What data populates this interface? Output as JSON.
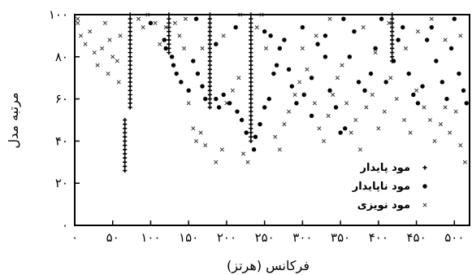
{
  "chart_data": {
    "type": "scatter",
    "xlabel": "فرکانس (هرتز)",
    "ylabel": "مرتبه مدل",
    "xlim": [
      0,
      520
    ],
    "ylim": [
      0,
      100
    ],
    "x_ticks": [
      0,
      50,
      100,
      150,
      200,
      250,
      300,
      350,
      400,
      450,
      500
    ],
    "x_tick_labels": [
      "۰",
      "۵۰",
      "۱۰۰",
      "۱۵۰",
      "۲۰۰",
      "۲۵۰",
      "۳۰۰",
      "۳۵۰",
      "۴۰۰",
      "۴۵۰",
      "۵۰۰"
    ],
    "y_ticks": [
      0,
      20,
      40,
      60,
      80,
      100
    ],
    "y_tick_labels": [
      "۰",
      "۲۰",
      "۴۰",
      "۶۰",
      "۸۰",
      "۱۰۰"
    ],
    "legend_position": "bottom-right",
    "series": [
      {
        "name": "مود پایدار",
        "marker": "plus",
        "color": "#000000",
        "points": [
          [
            66,
            26
          ],
          [
            66,
            28
          ],
          [
            66,
            30
          ],
          [
            66,
            32
          ],
          [
            66,
            34
          ],
          [
            66,
            36
          ],
          [
            66,
            38
          ],
          [
            66,
            40
          ],
          [
            66,
            42
          ],
          [
            66,
            44
          ],
          [
            66,
            46
          ],
          [
            66,
            48
          ],
          [
            66,
            50
          ],
          [
            73,
            56
          ],
          [
            73,
            58
          ],
          [
            73,
            60
          ],
          [
            73,
            62
          ],
          [
            73,
            64
          ],
          [
            73,
            66
          ],
          [
            73,
            68
          ],
          [
            73,
            70
          ],
          [
            73,
            72
          ],
          [
            73,
            74
          ],
          [
            73,
            76
          ],
          [
            73,
            78
          ],
          [
            73,
            80
          ],
          [
            73,
            82
          ],
          [
            73,
            84
          ],
          [
            73,
            86
          ],
          [
            73,
            88
          ],
          [
            73,
            90
          ],
          [
            73,
            92
          ],
          [
            73,
            94
          ],
          [
            73,
            96
          ],
          [
            73,
            98
          ],
          [
            73,
            100
          ],
          [
            124,
            82
          ],
          [
            124,
            84
          ],
          [
            124,
            86
          ],
          [
            124,
            88
          ],
          [
            124,
            90
          ],
          [
            124,
            92
          ],
          [
            124,
            94
          ],
          [
            124,
            96
          ],
          [
            124,
            98
          ],
          [
            124,
            100
          ],
          [
            178,
            56
          ],
          [
            178,
            58
          ],
          [
            178,
            60
          ],
          [
            178,
            62
          ],
          [
            178,
            64
          ],
          [
            178,
            66
          ],
          [
            178,
            68
          ],
          [
            178,
            70
          ],
          [
            178,
            72
          ],
          [
            178,
            74
          ],
          [
            178,
            76
          ],
          [
            178,
            78
          ],
          [
            178,
            80
          ],
          [
            178,
            82
          ],
          [
            178,
            84
          ],
          [
            178,
            86
          ],
          [
            178,
            88
          ],
          [
            178,
            90
          ],
          [
            178,
            92
          ],
          [
            178,
            94
          ],
          [
            178,
            96
          ],
          [
            178,
            98
          ],
          [
            178,
            100
          ],
          [
            232,
            40
          ],
          [
            232,
            42
          ],
          [
            232,
            44
          ],
          [
            232,
            46
          ],
          [
            232,
            48
          ],
          [
            232,
            50
          ],
          [
            232,
            52
          ],
          [
            232,
            54
          ],
          [
            232,
            56
          ],
          [
            232,
            58
          ],
          [
            232,
            60
          ],
          [
            232,
            62
          ],
          [
            232,
            64
          ],
          [
            232,
            66
          ],
          [
            232,
            68
          ],
          [
            232,
            70
          ],
          [
            232,
            72
          ],
          [
            232,
            74
          ],
          [
            232,
            76
          ],
          [
            232,
            78
          ],
          [
            232,
            80
          ],
          [
            232,
            82
          ],
          [
            232,
            84
          ],
          [
            232,
            86
          ],
          [
            232,
            88
          ],
          [
            232,
            90
          ],
          [
            232,
            92
          ],
          [
            232,
            94
          ],
          [
            232,
            96
          ],
          [
            232,
            98
          ],
          [
            232,
            100
          ],
          [
            418,
            78
          ],
          [
            418,
            80
          ],
          [
            418,
            82
          ],
          [
            418,
            84
          ],
          [
            418,
            86
          ],
          [
            418,
            88
          ],
          [
            418,
            90
          ],
          [
            418,
            92
          ],
          [
            418,
            94
          ],
          [
            418,
            96
          ],
          [
            418,
            98
          ],
          [
            418,
            100
          ]
        ]
      },
      {
        "name": "مود ناپایدار",
        "marker": "dot",
        "color": "#000000",
        "points": [
          [
            118,
            88
          ],
          [
            120,
            84
          ],
          [
            128,
            80
          ],
          [
            130,
            76
          ],
          [
            134,
            72
          ],
          [
            140,
            68
          ],
          [
            150,
            64
          ],
          [
            156,
            78
          ],
          [
            162,
            72
          ],
          [
            168,
            66
          ],
          [
            172,
            60
          ],
          [
            186,
            60
          ],
          [
            190,
            56
          ],
          [
            196,
            62
          ],
          [
            204,
            58
          ],
          [
            214,
            54
          ],
          [
            220,
            50
          ],
          [
            226,
            44
          ],
          [
            236,
            36
          ],
          [
            238,
            42
          ],
          [
            244,
            48
          ],
          [
            250,
            56
          ],
          [
            256,
            60
          ],
          [
            262,
            72
          ],
          [
            266,
            76
          ],
          [
            270,
            84
          ],
          [
            276,
            88
          ],
          [
            282,
            74
          ],
          [
            286,
            66
          ],
          [
            292,
            58
          ],
          [
            302,
            62
          ],
          [
            312,
            70
          ],
          [
            320,
            86
          ],
          [
            330,
            90
          ],
          [
            336,
            64
          ],
          [
            344,
            56
          ],
          [
            350,
            44
          ],
          [
            356,
            46
          ],
          [
            362,
            80
          ],
          [
            368,
            92
          ],
          [
            374,
            68
          ],
          [
            382,
            64
          ],
          [
            390,
            72
          ],
          [
            396,
            84
          ],
          [
            404,
            98
          ],
          [
            410,
            68
          ],
          [
            420,
            78
          ],
          [
            426,
            88
          ],
          [
            432,
            94
          ],
          [
            440,
            72
          ],
          [
            446,
            62
          ],
          [
            452,
            58
          ],
          [
            458,
            66
          ],
          [
            464,
            88
          ],
          [
            470,
            94
          ],
          [
            476,
            78
          ],
          [
            484,
            68
          ],
          [
            490,
            60
          ],
          [
            496,
            84
          ],
          [
            500,
            98
          ],
          [
            506,
            72
          ],
          [
            512,
            64
          ],
          [
            516,
            58
          ],
          [
            354,
            98
          ],
          [
            300,
            94
          ],
          [
            258,
            90
          ],
          [
            212,
            94
          ],
          [
            186,
            86
          ],
          [
            160,
            98
          ],
          [
            100,
            96
          ],
          [
            250,
            92
          ],
          [
            312,
            52
          ],
          [
            330,
            80
          ]
        ]
      },
      {
        "name": "مود نویزی",
        "marker": "x",
        "color": "#333333",
        "points": [
          [
            4,
            96
          ],
          [
            8,
            90
          ],
          [
            14,
            86
          ],
          [
            20,
            92
          ],
          [
            26,
            82
          ],
          [
            30,
            76
          ],
          [
            36,
            84
          ],
          [
            40,
            96
          ],
          [
            46,
            88
          ],
          [
            50,
            80
          ],
          [
            56,
            78
          ],
          [
            60,
            90
          ],
          [
            84,
            98
          ],
          [
            90,
            94
          ],
          [
            106,
            96
          ],
          [
            112,
            86
          ],
          [
            132,
            96
          ],
          [
            138,
            90
          ],
          [
            144,
            84
          ],
          [
            150,
            58
          ],
          [
            156,
            46
          ],
          [
            160,
            40
          ],
          [
            166,
            44
          ],
          [
            172,
            38
          ],
          [
            186,
            30
          ],
          [
            194,
            36
          ],
          [
            200,
            58
          ],
          [
            208,
            64
          ],
          [
            216,
            70
          ],
          [
            222,
            34
          ],
          [
            228,
            30
          ],
          [
            240,
            94
          ],
          [
            246,
            100
          ],
          [
            252,
            84
          ],
          [
            264,
            42
          ],
          [
            270,
            36
          ],
          [
            276,
            48
          ],
          [
            282,
            54
          ],
          [
            290,
            62
          ],
          [
            296,
            68
          ],
          [
            306,
            74
          ],
          [
            316,
            58
          ],
          [
            322,
            46
          ],
          [
            328,
            40
          ],
          [
            334,
            52
          ],
          [
            340,
            62
          ],
          [
            346,
            70
          ],
          [
            352,
            76
          ],
          [
            358,
            58
          ],
          [
            364,
            44
          ],
          [
            370,
            50
          ],
          [
            376,
            36
          ],
          [
            384,
            56
          ],
          [
            392,
            62
          ],
          [
            400,
            46
          ],
          [
            408,
            54
          ],
          [
            416,
            70
          ],
          [
            424,
            60
          ],
          [
            434,
            50
          ],
          [
            442,
            44
          ],
          [
            450,
            64
          ],
          [
            460,
            56
          ],
          [
            468,
            50
          ],
          [
            474,
            40
          ],
          [
            482,
            48
          ],
          [
            488,
            56
          ],
          [
            494,
            44
          ],
          [
            502,
            54
          ],
          [
            508,
            38
          ],
          [
            514,
            30
          ],
          [
            58,
            68
          ],
          [
            44,
            72
          ],
          [
            96,
            100
          ],
          [
            120,
            94
          ],
          [
            146,
            98
          ],
          [
            300,
            84
          ],
          [
            318,
            90
          ],
          [
            336,
            98
          ],
          [
            380,
            94
          ],
          [
            396,
            82
          ],
          [
            414,
            96
          ],
          [
            436,
            84
          ],
          [
            452,
            92
          ],
          [
            470,
            98
          ],
          [
            488,
            88
          ],
          [
            508,
            90
          ],
          [
            4,
            98
          ],
          [
            218,
            100
          ],
          [
            196,
            90
          ],
          [
            168,
            84
          ]
        ]
      }
    ]
  }
}
